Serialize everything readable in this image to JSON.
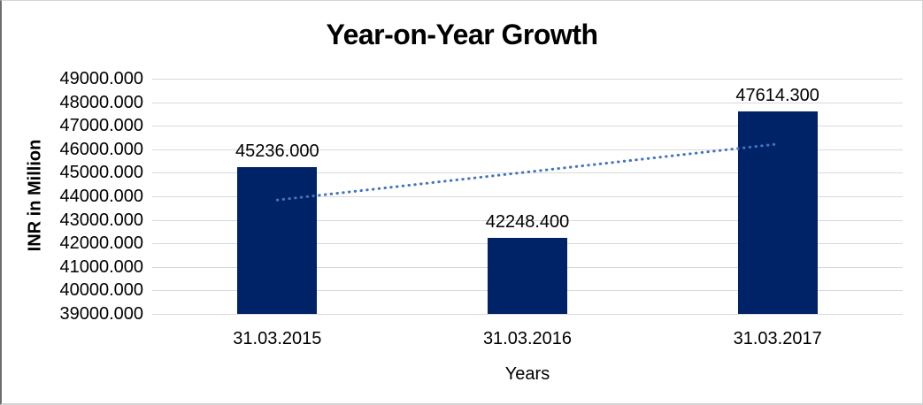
{
  "window": {
    "background": "#ffffff",
    "border_color": "#d4d4d4",
    "left_edge_color": "#6e6e6e"
  },
  "chart_data": {
    "type": "bar",
    "title": "Year-on-Year Growth",
    "xlabel": "Years",
    "ylabel": "INR in Million",
    "categories": [
      "31.03.2015",
      "31.03.2016",
      "31.03.2017"
    ],
    "values": [
      45236.0,
      42248.4,
      47614.3
    ],
    "data_labels": [
      "45236.000",
      "42248.400",
      "47614.300"
    ],
    "y_tick_labels": [
      "49000.000",
      "48000.000",
      "47000.000",
      "46000.000",
      "45000.000",
      "44000.000",
      "43000.000",
      "42000.000",
      "41000.000",
      "40000.000",
      "39000.000"
    ],
    "ylim": [
      39000,
      49000
    ],
    "y_tick_step": 1000,
    "grid": true,
    "legend": false,
    "bar_color": "#002266",
    "gridline_color": "#d9d9d9",
    "text_color": "#000000",
    "trendline": {
      "type": "linear",
      "style": "dotted",
      "color": "#4472C4",
      "endpoint_values": [
        43843.75,
        46222.05
      ]
    }
  }
}
